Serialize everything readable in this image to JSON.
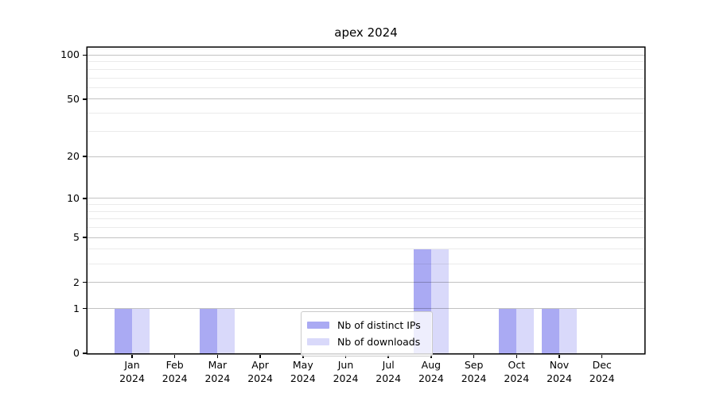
{
  "chart_data": {
    "type": "bar",
    "title": "apex 2024",
    "categories": [
      {
        "label": "Jan",
        "year": "2024"
      },
      {
        "label": "Feb",
        "year": "2024"
      },
      {
        "label": "Mar",
        "year": "2024"
      },
      {
        "label": "Apr",
        "year": "2024"
      },
      {
        "label": "May",
        "year": "2024"
      },
      {
        "label": "Jun",
        "year": "2024"
      },
      {
        "label": "Jul",
        "year": "2024"
      },
      {
        "label": "Aug",
        "year": "2024"
      },
      {
        "label": "Sep",
        "year": "2024"
      },
      {
        "label": "Oct",
        "year": "2024"
      },
      {
        "label": "Nov",
        "year": "2024"
      },
      {
        "label": "Dec",
        "year": "2024"
      }
    ],
    "series": [
      {
        "name": "Nb of distinct IPs",
        "color": "#aaaaf3",
        "values": [
          1,
          0,
          1,
          0,
          0,
          0,
          0,
          4,
          0,
          1,
          1,
          0
        ]
      },
      {
        "name": "Nb of downloads",
        "color": "#d9d9fa",
        "values": [
          1,
          0,
          1,
          0,
          0,
          0,
          0,
          4,
          0,
          1,
          1,
          0
        ]
      }
    ],
    "y_axis": {
      "scale": "log1p",
      "ticks": [
        0,
        1,
        2,
        5,
        10,
        20,
        50,
        100
      ],
      "minor_gridlines": [
        3,
        4,
        6,
        7,
        8,
        9,
        30,
        40,
        60,
        70,
        80,
        90,
        110
      ],
      "range_top": 115
    },
    "grid": "horizontal",
    "legend_position": "inside-bottom-center"
  }
}
